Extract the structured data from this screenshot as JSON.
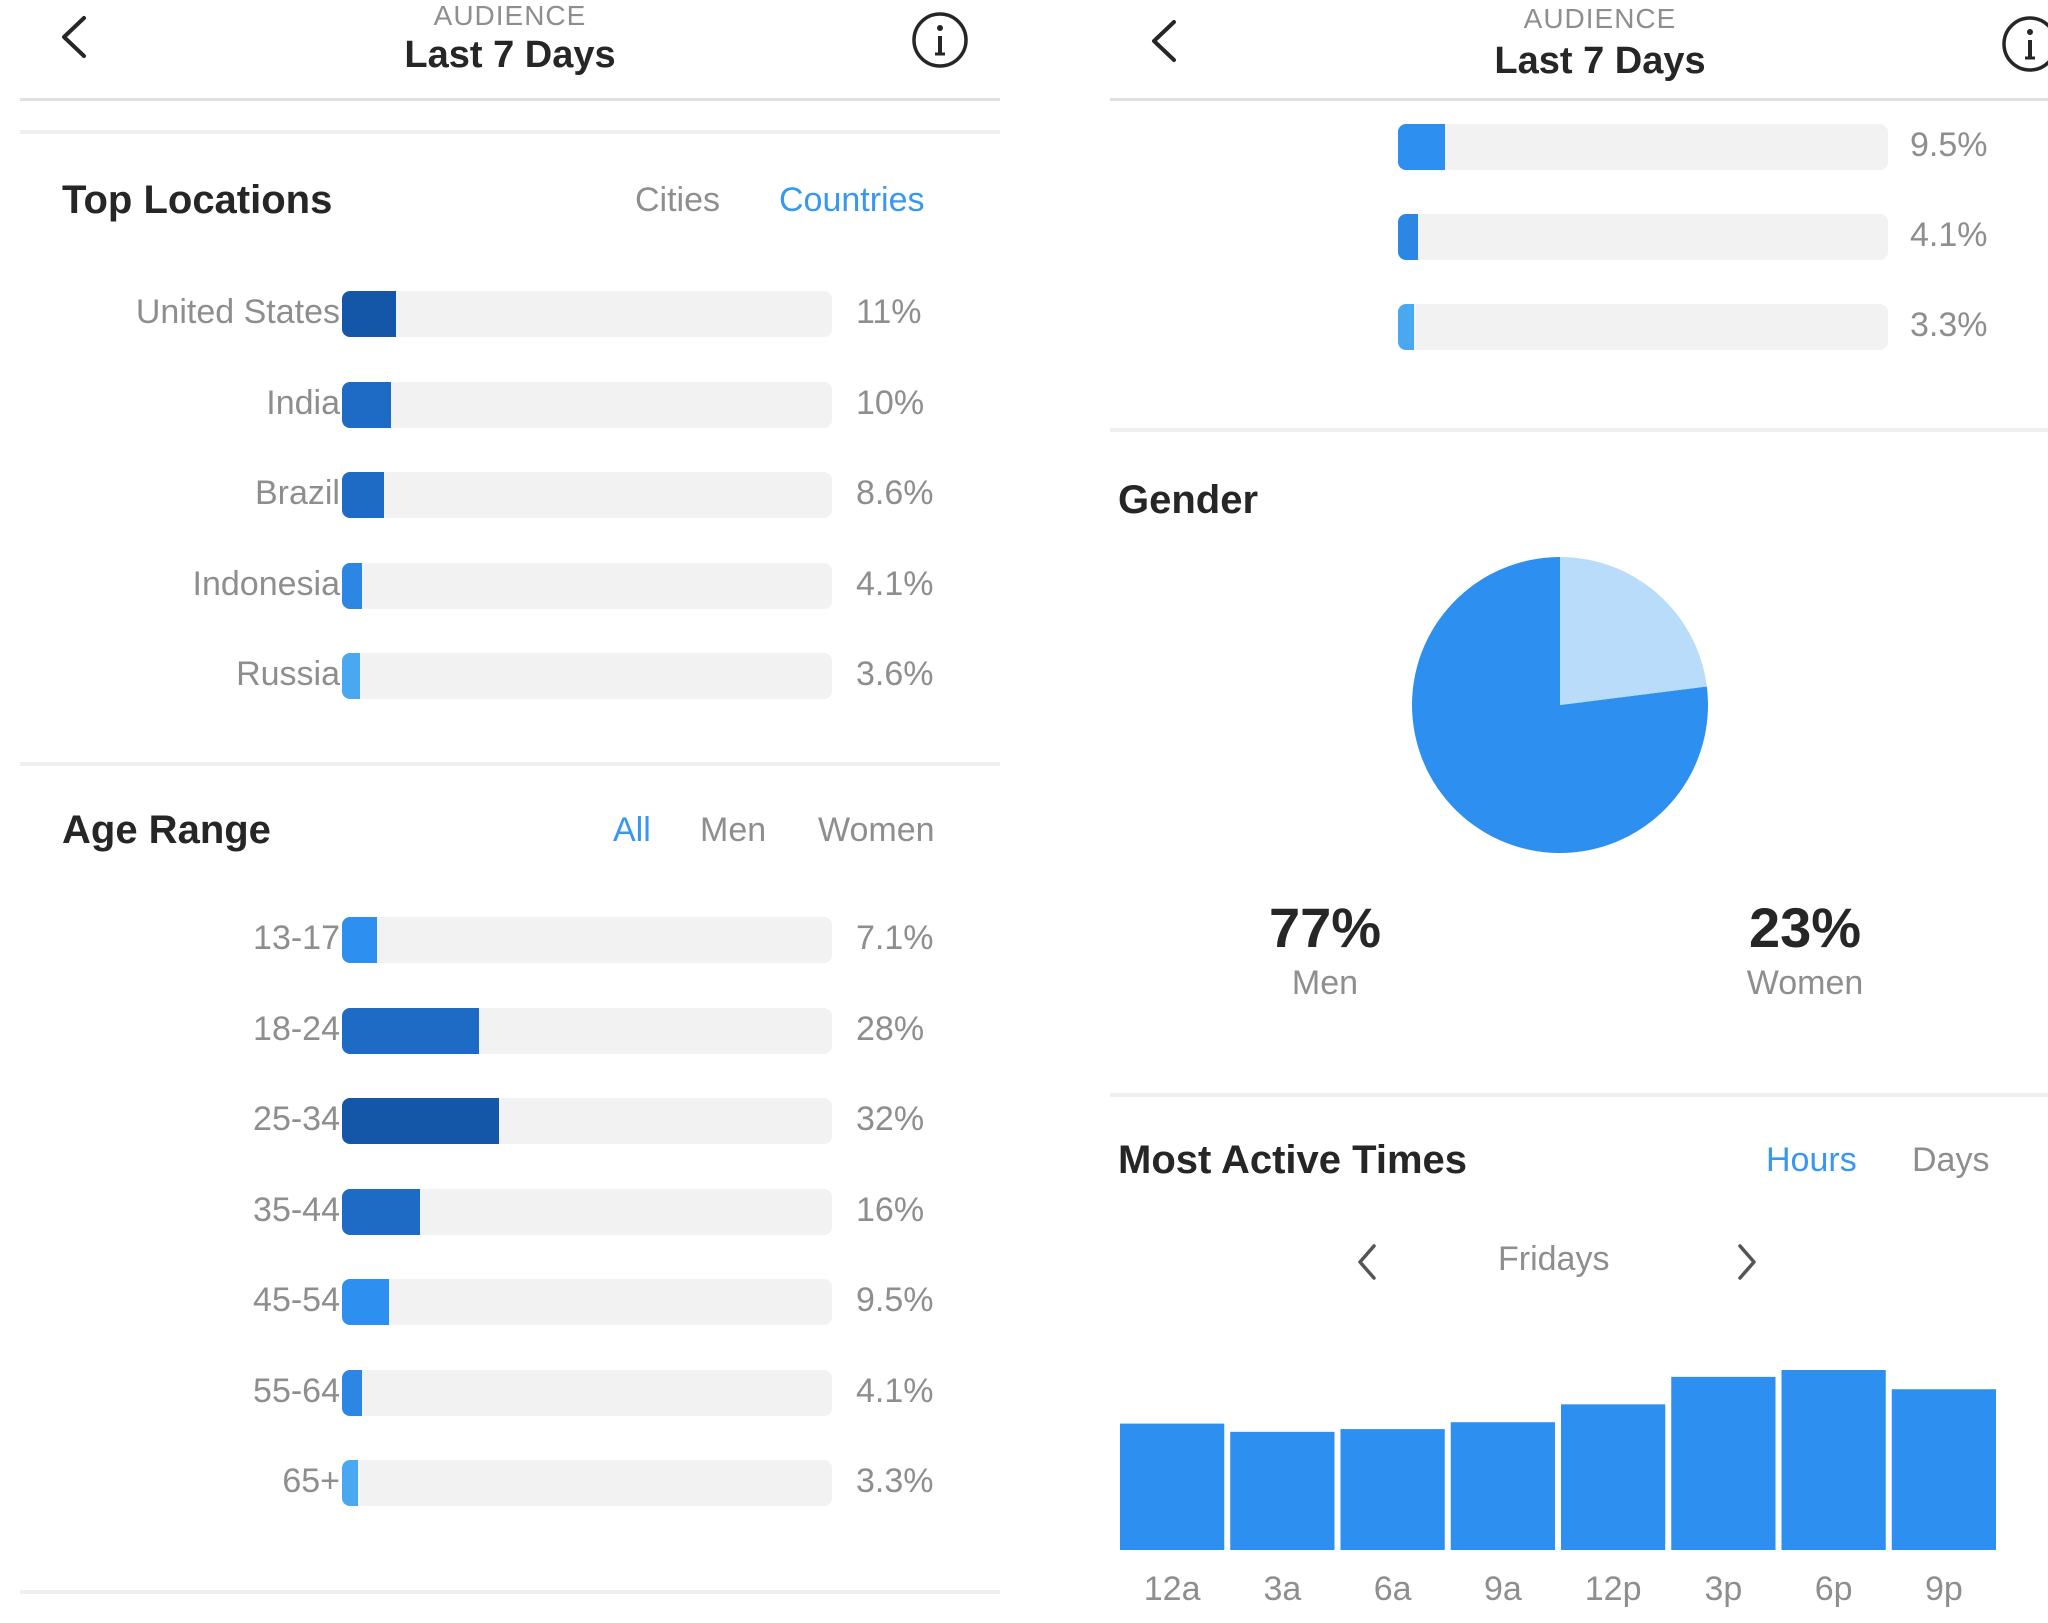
{
  "header": {
    "kicker": "AUDIENCE",
    "title": "Last 7 Days"
  },
  "top_locations": {
    "title": "Top Locations",
    "tabs": [
      {
        "label": "Cities",
        "active": false
      },
      {
        "label": "Countries",
        "active": true
      }
    ],
    "items": [
      {
        "label": "United States",
        "value": 11,
        "pct": "11%",
        "color": "#1456a8"
      },
      {
        "label": "India",
        "value": 10,
        "pct": "10%",
        "color": "#1e6bc6"
      },
      {
        "label": "Brazil",
        "value": 8.6,
        "pct": "8.6%",
        "color": "#1e6bc6"
      },
      {
        "label": "Indonesia",
        "value": 4.1,
        "pct": "4.1%",
        "color": "#2b87e3"
      },
      {
        "label": "Russia",
        "value": 3.6,
        "pct": "3.6%",
        "color": "#4aa8f0"
      }
    ]
  },
  "age_range": {
    "title": "Age Range",
    "tabs": [
      {
        "label": "All",
        "active": true
      },
      {
        "label": "Men",
        "active": false
      },
      {
        "label": "Women",
        "active": false
      }
    ],
    "items": [
      {
        "label": "13-17",
        "value": 7.1,
        "pct": "7.1%",
        "color": "#2d8ff0"
      },
      {
        "label": "18-24",
        "value": 28,
        "pct": "28%",
        "color": "#1e6bc6"
      },
      {
        "label": "25-34",
        "value": 32,
        "pct": "32%",
        "color": "#1456a8"
      },
      {
        "label": "35-44",
        "value": 16,
        "pct": "16%",
        "color": "#1e6bc6"
      },
      {
        "label": "45-54",
        "value": 9.5,
        "pct": "9.5%",
        "color": "#2d8ff0"
      },
      {
        "label": "55-64",
        "value": 4.1,
        "pct": "4.1%",
        "color": "#2b87e3"
      },
      {
        "label": "65+",
        "value": 3.3,
        "pct": "3.3%",
        "color": "#4aa8f0"
      }
    ]
  },
  "right_age_continued": [
    {
      "label": "45-54",
      "value": 9.5,
      "pct": "9.5%",
      "color": "#2d8ff0"
    },
    {
      "label": "55-64",
      "value": 4.1,
      "pct": "4.1%",
      "color": "#2b87e3"
    },
    {
      "label": "65+",
      "value": 3.3,
      "pct": "3.3%",
      "color": "#4aa8f0"
    }
  ],
  "gender": {
    "title": "Gender",
    "men_pct": "77%",
    "men_label": "Men",
    "women_pct": "23%",
    "women_label": "Women",
    "men_value": 77,
    "women_value": 23,
    "men_color": "#2d8ff0",
    "women_color": "#b9dcfa"
  },
  "most_active": {
    "title": "Most Active Times",
    "tabs": [
      {
        "label": "Hours",
        "active": true
      },
      {
        "label": "Days",
        "active": false
      }
    ],
    "day": "Fridays"
  },
  "chart_data": {
    "type": "bar",
    "categories": [
      "12a",
      "3a",
      "6a",
      "9a",
      "12p",
      "3p",
      "6p",
      "9p"
    ],
    "values": [
      92,
      86,
      88,
      93,
      106,
      126,
      131,
      117
    ],
    "color": "#2d8ff0",
    "title": "",
    "xlabel": "",
    "ylabel": "",
    "ylim": [
      0,
      131
    ]
  },
  "colors": {
    "accent": "#3897f0",
    "muted_text": "#8e8e8e",
    "track": "#f2f2f2"
  }
}
